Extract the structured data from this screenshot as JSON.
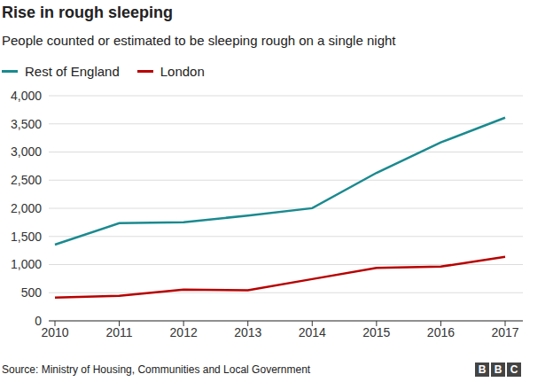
{
  "chart_data": {
    "type": "line",
    "title": "Rise in rough sleeping",
    "subtitle": "People counted or estimated to be sleeping rough on a single night",
    "categories": [
      "2010",
      "2011",
      "2012",
      "2013",
      "2014",
      "2015",
      "2016",
      "2017"
    ],
    "series": [
      {
        "name": "Rest of England",
        "color": "#1a8a8f",
        "values": [
          1355,
          1735,
          1752,
          1871,
          2002,
          2630,
          3170,
          3610
        ]
      },
      {
        "name": "London",
        "color": "#b80000",
        "values": [
          415,
          446,
          557,
          543,
          742,
          940,
          964,
          1137
        ]
      }
    ],
    "ylim": [
      0,
      4000
    ],
    "yticks": [
      0,
      500,
      {
        "value": 1000,
        "label": "1,000"
      },
      {
        "value": 1500,
        "label": "1,500"
      },
      {
        "value": 2000,
        "label": "2,000"
      },
      {
        "value": 2500,
        "label": "2,500"
      },
      {
        "value": 3000,
        "label": "3,000"
      },
      {
        "value": 3500,
        "label": "3,500"
      },
      {
        "value": 4000,
        "label": "4,000"
      }
    ],
    "grid": true,
    "legend": "top left"
  },
  "source": "Source: Ministry of Housing, Communities and Local Government",
  "branding": "BBC"
}
